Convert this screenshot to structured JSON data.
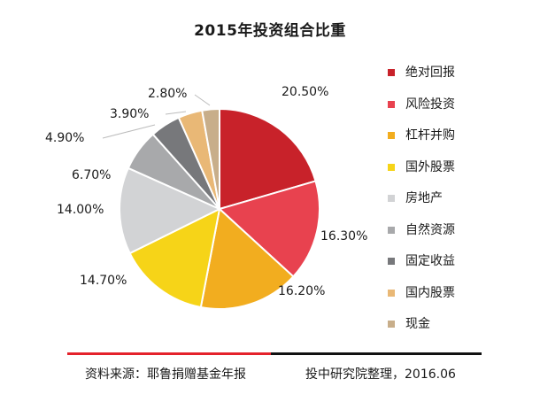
{
  "chart_data": {
    "type": "pie",
    "title": "2015年投资组合比重",
    "slices": [
      {
        "label": "绝对回报",
        "value": 20.5,
        "value_label": "20.50%",
        "color": "#c8222a"
      },
      {
        "label": "风险投资",
        "value": 16.3,
        "value_label": "16.30%",
        "color": "#e8424f"
      },
      {
        "label": "杠杆并购",
        "value": 16.2,
        "value_label": "16.20%",
        "color": "#f2ad1f"
      },
      {
        "label": "国外股票",
        "value": 14.7,
        "value_label": "14.70%",
        "color": "#f6d418"
      },
      {
        "label": "房地产",
        "value": 14.0,
        "value_label": "14.00%",
        "color": "#d2d3d5"
      },
      {
        "label": "自然资源",
        "value": 6.7,
        "value_label": "6.70%",
        "color": "#a8a9ab"
      },
      {
        "label": "固定收益",
        "value": 4.9,
        "value_label": "4.90%",
        "color": "#77787b"
      },
      {
        "label": "国内股票",
        "value": 3.9,
        "value_label": "3.90%",
        "color": "#e9b876"
      },
      {
        "label": "现金",
        "value": 2.8,
        "value_label": "2.80%",
        "color": "#c8ae8a"
      }
    ],
    "start_angle_deg": 0,
    "direction": "clockwise",
    "legend_position": "right"
  },
  "footer": {
    "source": "资料来源：耶鲁捐赠基金年报",
    "credit": "投中研究院整理，2016.06"
  }
}
